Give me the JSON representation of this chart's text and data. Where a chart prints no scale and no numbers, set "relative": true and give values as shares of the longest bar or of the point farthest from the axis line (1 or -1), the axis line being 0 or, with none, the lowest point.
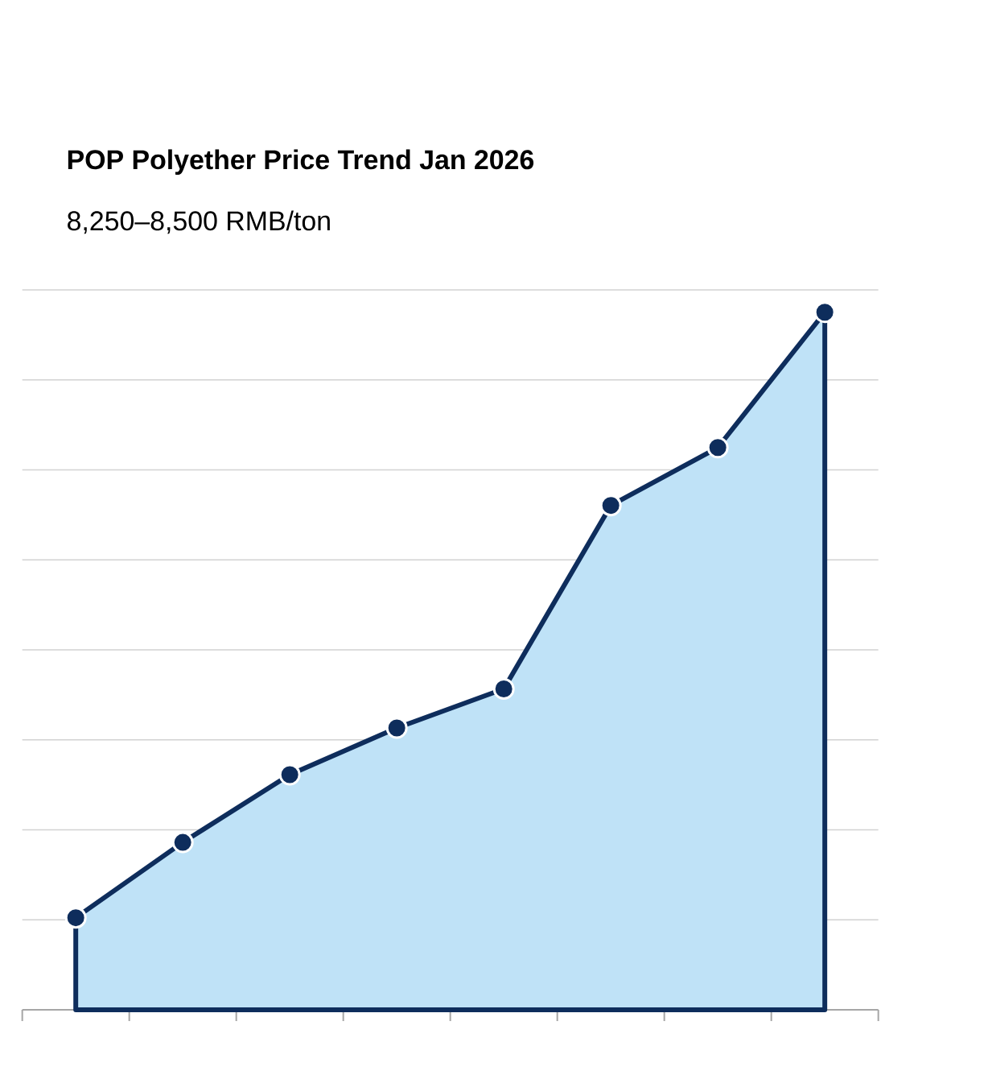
{
  "chart_data": {
    "type": "area",
    "title": "POP Polyether Price Trend Jan 2026",
    "subtitle": "8,250–8,500 RMB/ton",
    "relative": true,
    "categories": [
      null,
      null,
      null,
      null,
      null,
      null,
      null,
      null
    ],
    "series": [
      {
        "color": "#0e2d5c",
        "values": [
          0.132,
          0.24,
          0.337,
          0.404,
          0.46,
          0.723,
          0.806,
          1
        ]
      }
    ],
    "marker": "circle",
    "grid": "y"
  }
}
